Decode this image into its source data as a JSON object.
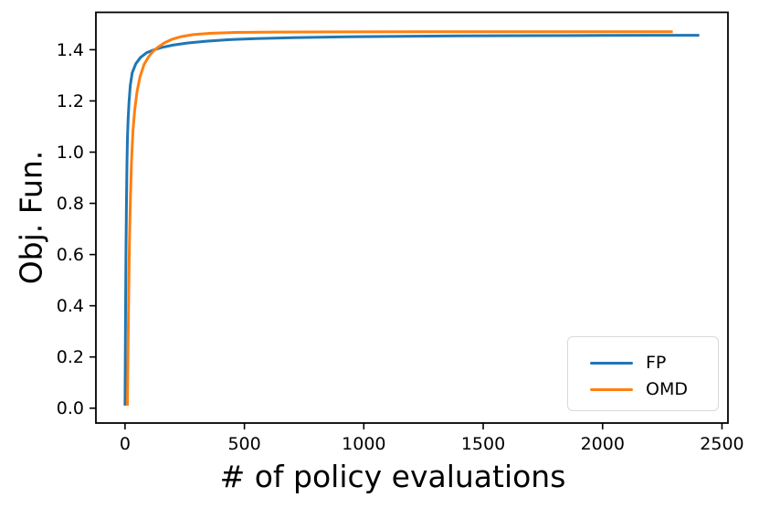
{
  "figure": {
    "background_color": "#ffffff",
    "text_color": "#000000",
    "axis_color": "#000000"
  },
  "chart_data": {
    "type": "line",
    "title": "",
    "xlabel": "# of policy evaluations",
    "ylabel": "Obj. Fun.",
    "xlim": [
      -122,
      2525
    ],
    "ylim": [
      -0.058,
      1.546
    ],
    "xticks": [
      0,
      500,
      1000,
      1500,
      2000,
      2500
    ],
    "yticks": [
      0.0,
      0.2,
      0.4,
      0.6,
      0.8,
      1.0,
      1.2,
      1.4
    ],
    "grid": false,
    "legend_position": "lower right",
    "series": [
      {
        "name": "FP",
        "color": "#1f77b4",
        "points": [
          [
            0,
            0.01
          ],
          [
            1,
            0.18
          ],
          [
            2,
            0.35
          ],
          [
            4,
            0.62
          ],
          [
            6,
            0.8
          ],
          [
            8,
            0.95
          ],
          [
            10,
            1.05
          ],
          [
            13,
            1.13
          ],
          [
            17,
            1.2
          ],
          [
            22,
            1.26
          ],
          [
            30,
            1.31
          ],
          [
            45,
            1.345
          ],
          [
            65,
            1.37
          ],
          [
            90,
            1.388
          ],
          [
            120,
            1.399
          ],
          [
            150,
            1.408
          ],
          [
            200,
            1.418
          ],
          [
            260,
            1.426
          ],
          [
            340,
            1.433
          ],
          [
            430,
            1.439
          ],
          [
            550,
            1.4435
          ],
          [
            700,
            1.447
          ],
          [
            900,
            1.45
          ],
          [
            1100,
            1.452
          ],
          [
            1400,
            1.454
          ],
          [
            1700,
            1.455
          ],
          [
            2000,
            1.4558
          ],
          [
            2200,
            1.4562
          ],
          [
            2405,
            1.4565
          ]
        ]
      },
      {
        "name": "OMD",
        "color": "#ff7f0e",
        "points": [
          [
            10,
            0.01
          ],
          [
            12,
            0.18
          ],
          [
            15,
            0.42
          ],
          [
            18,
            0.62
          ],
          [
            22,
            0.8
          ],
          [
            27,
            0.96
          ],
          [
            33,
            1.08
          ],
          [
            40,
            1.16
          ],
          [
            50,
            1.235
          ],
          [
            63,
            1.295
          ],
          [
            80,
            1.343
          ],
          [
            100,
            1.374
          ],
          [
            120,
            1.396
          ],
          [
            140,
            1.411
          ],
          [
            165,
            1.427
          ],
          [
            195,
            1.44
          ],
          [
            235,
            1.451
          ],
          [
            285,
            1.459
          ],
          [
            360,
            1.4645
          ],
          [
            460,
            1.4675
          ],
          [
            620,
            1.469
          ],
          [
            900,
            1.4697
          ],
          [
            1200,
            1.47
          ],
          [
            1600,
            1.47
          ],
          [
            2000,
            1.47
          ],
          [
            2294,
            1.47
          ]
        ]
      }
    ]
  }
}
